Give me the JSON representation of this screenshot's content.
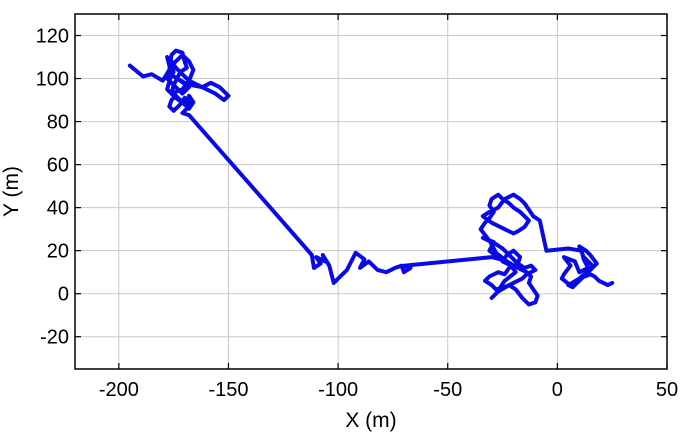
{
  "chart_data": {
    "type": "line",
    "title": "",
    "xlabel": "X (m)",
    "ylabel": "Y (m)",
    "xlim": [
      -220,
      50
    ],
    "ylim": [
      -35,
      130
    ],
    "xticks": [
      -200,
      -150,
      -100,
      -50,
      0,
      50
    ],
    "yticks": [
      -20,
      0,
      20,
      40,
      60,
      80,
      100,
      120
    ],
    "xtick_labels": [
      "-200",
      "-150",
      "-100",
      "-50",
      "0",
      "50"
    ],
    "ytick_labels": [
      "-20",
      "0",
      "20",
      "40",
      "60",
      "80",
      "100",
      "120"
    ],
    "grid": true,
    "legend": "none",
    "colors": {
      "line": "#0a0ae6",
      "grid": "#c8c8c8",
      "frame": "#000000",
      "background": "#ffffff"
    },
    "series": [
      {
        "x": [
          -195,
          -189,
          -185,
          -180,
          -177,
          -176,
          -174,
          -171,
          -170,
          -169,
          -172,
          -175,
          -176,
          -171,
          -168,
          -166,
          -168,
          -171,
          -173,
          -176,
          -175,
          -178,
          -174,
          -171,
          -168,
          -172,
          -175,
          -170,
          -167,
          -162,
          -158,
          -154,
          -152,
          -150,
          -152,
          -156,
          -160,
          -164,
          -168,
          -170,
          -172,
          -174,
          -176,
          -178,
          -176,
          -178,
          -174,
          -170,
          -168,
          -166,
          -168,
          -170,
          -172,
          -174,
          -176,
          -177,
          -175,
          -172,
          -170,
          -168,
          -169,
          -171,
          -168,
          -130,
          -112,
          -111,
          -108,
          -110,
          -106,
          -107,
          -104,
          -102,
          -96,
          -92,
          -88,
          -90,
          -86,
          -82,
          -78,
          -74,
          -71,
          -70,
          -67,
          -70,
          -30,
          -26,
          -31,
          -29,
          -34,
          -32,
          -28,
          -25,
          -23,
          -21,
          -20,
          -18,
          -15,
          -12,
          -10,
          -14,
          -16,
          -20,
          -24,
          -28,
          -30,
          -33,
          -31,
          -27,
          -24,
          -22,
          -18,
          -17,
          -20,
          -23,
          -25,
          -21,
          -19,
          -24,
          -26,
          -28,
          -30,
          -27,
          -22,
          -19,
          -16,
          -13,
          -10,
          -9,
          -11,
          -13,
          -12,
          -14,
          -18,
          -23,
          -28,
          -30,
          -32,
          -35,
          -33,
          -31,
          -29,
          -31,
          -30,
          -27,
          -25,
          -22,
          -20,
          -17,
          -15,
          -13,
          -15,
          -18,
          -20,
          -24,
          -30,
          -34,
          -31,
          -27,
          -24,
          -20,
          -17,
          -15,
          -13,
          -11,
          -8,
          -5,
          5,
          11,
          12,
          14,
          10,
          8,
          3,
          6,
          3,
          2,
          7,
          9,
          13,
          16,
          12,
          10,
          13,
          15,
          18,
          15,
          11,
          8,
          7,
          5,
          10,
          15,
          17,
          19,
          21,
          23,
          25
        ],
        "y": [
          106,
          101,
          102,
          99,
          104,
          111,
          113,
          112,
          108,
          105,
          103,
          97,
          93,
          95,
          99,
          104,
          108,
          111,
          109,
          106,
          103,
          100,
          96,
          93,
          96,
          99,
          101,
          98,
          97,
          96,
          98,
          96,
          94,
          92,
          90,
          93,
          95,
          97,
          99,
          101,
          103,
          105,
          108,
          110,
          102,
          95,
          91,
          88,
          92,
          89,
          86,
          88,
          90,
          92,
          90,
          87,
          85,
          88,
          91,
          89,
          86,
          84,
          83,
          39,
          18,
          12,
          14,
          17,
          15,
          18,
          13,
          5,
          11,
          19,
          16,
          12,
          15,
          11,
          10,
          12,
          13,
          10,
          12,
          13,
          17,
          16,
          20,
          24,
          26,
          25,
          23,
          21,
          19,
          17,
          16,
          14,
          12,
          13,
          11,
          9,
          7,
          5,
          3,
          2,
          4,
          6,
          8,
          10,
          9,
          12,
          14,
          17,
          20,
          18,
          15,
          13,
          10,
          6,
          3,
          0,
          -2,
          1,
          4,
          2,
          -2,
          -5,
          -4,
          -1,
          2,
          5,
          8,
          10,
          12,
          15,
          19,
          23,
          26,
          30,
          33,
          35,
          38,
          41,
          44,
          46,
          44,
          42,
          40,
          38,
          36,
          34,
          31,
          29,
          28,
          30,
          33,
          36,
          38,
          40,
          44,
          46,
          44,
          42,
          39,
          36,
          34,
          20,
          21,
          20,
          16,
          12,
          10,
          15,
          17,
          13,
          9,
          7,
          3,
          5,
          9,
          13,
          17,
          22,
          20,
          18,
          14,
          11,
          8,
          5,
          3,
          4,
          7,
          9,
          8,
          6,
          5,
          4,
          5
        ]
      }
    ]
  }
}
